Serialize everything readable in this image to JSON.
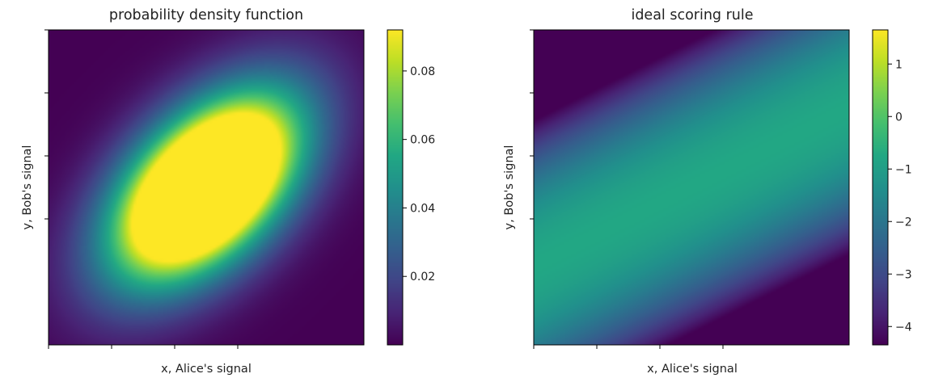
{
  "chart_data": [
    {
      "type": "heatmap",
      "title": "probability density function",
      "xlabel": "x, Alice's signal",
      "ylabel": "y, Bob's signal",
      "colormap": "viridis",
      "x_ticks_labeled": false,
      "y_ticks_labeled": false,
      "description_of_field": "bivariate normal density with positive correlation, peak near center",
      "field": {
        "kind": "bivariate_normal",
        "mean": [
          0.0,
          0.0
        ],
        "sigma_x": 1.0,
        "sigma_y": 1.0,
        "rho": 0.5,
        "x_range": [
          -2.5,
          2.5
        ],
        "y_range": [
          -2.5,
          2.5
        ]
      },
      "colorbar": {
        "range": [
          0.0,
          0.092
        ],
        "ticks": [
          0.02,
          0.04,
          0.06,
          0.08
        ],
        "tick_labels": [
          "0.02",
          "0.04",
          "0.06",
          "0.08"
        ]
      }
    },
    {
      "type": "heatmap",
      "title": "ideal scoring rule",
      "xlabel": "x, Alice's signal",
      "ylabel": "y, Bob's signal",
      "colormap": "viridis",
      "x_ticks_labeled": false,
      "y_ticks_labeled": false,
      "field": {
        "kind": "log_conditional_density",
        "mean": [
          0.0,
          0.0
        ],
        "rho": 0.5,
        "x_range": [
          -2.5,
          2.5
        ],
        "y_range": [
          -2.5,
          2.5
        ]
      },
      "colorbar": {
        "range": [
          -4.35,
          1.65
        ],
        "ticks": [
          -4,
          -3,
          -2,
          -1,
          0,
          1
        ],
        "tick_labels": [
          "−4",
          "−3",
          "−2",
          "−1",
          "0",
          "1"
        ]
      }
    }
  ]
}
